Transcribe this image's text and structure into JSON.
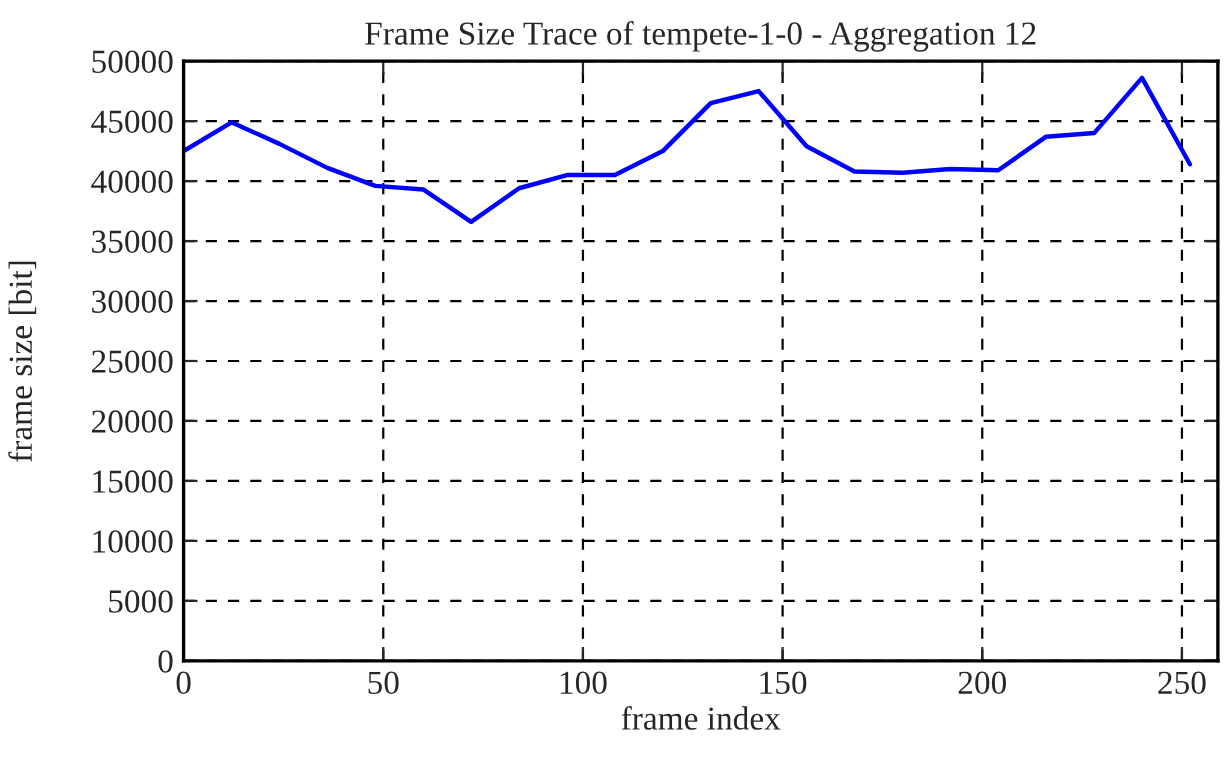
{
  "chart_data": {
    "type": "line",
    "title": "Frame Size Trace of tempete-1-0 - Aggregation 12",
    "xlabel": "frame index",
    "ylabel": "frame size [bit]",
    "series": [
      {
        "color": "#0000ff",
        "x": [
          0,
          12,
          24,
          36,
          48,
          60,
          72,
          84,
          96,
          108,
          120,
          132,
          144,
          156,
          168,
          180,
          192,
          204,
          216,
          228,
          240,
          252
        ],
        "values": [
          42500,
          44900,
          43100,
          41100,
          39600,
          39300,
          36600,
          39400,
          40500,
          40500,
          42500,
          46500,
          47500,
          42900,
          40800,
          40700,
          41000,
          40900,
          43700,
          44000,
          48600,
          41400
        ]
      }
    ],
    "xlim": [
      0,
      259
    ],
    "xticks": [
      0,
      50,
      100,
      150,
      200,
      250
    ],
    "ylim": [
      0,
      50000
    ],
    "yticks": [
      0,
      5000,
      10000,
      15000,
      20000,
      25000,
      30000,
      35000,
      40000,
      45000,
      50000
    ],
    "grid": true,
    "marker": "none",
    "line_style": "solid"
  }
}
